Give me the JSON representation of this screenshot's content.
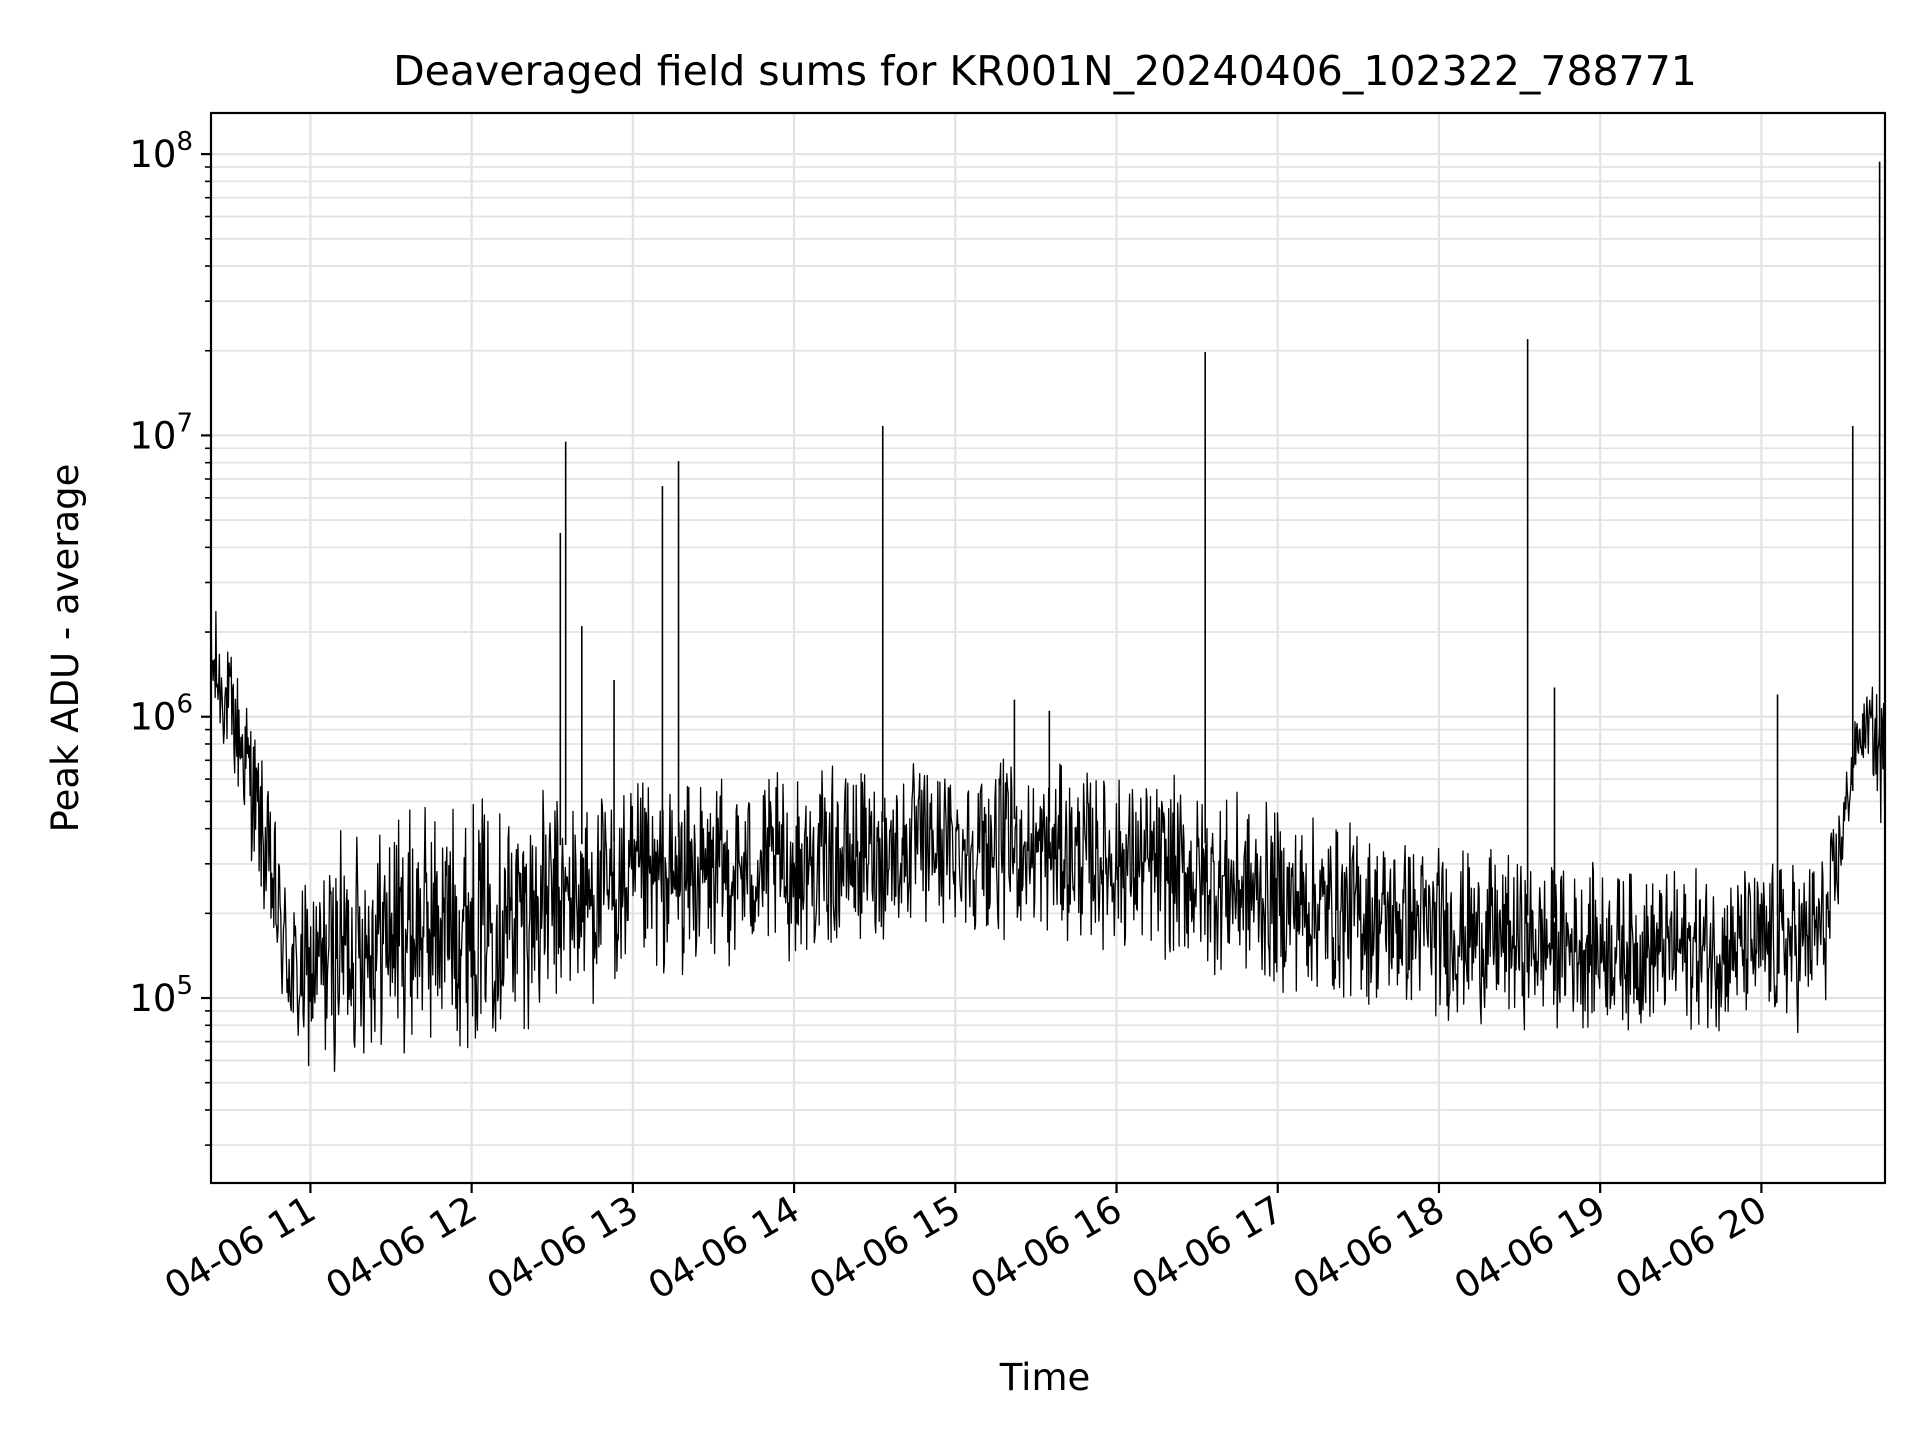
{
  "chart_data": {
    "type": "line",
    "title": "Deaveraged field sums for KR001N_20240406_102322_788771",
    "xlabel": "Time",
    "ylabel": "Peak ADU - average",
    "x_axis": {
      "kind": "datetime",
      "range": [
        "2024-04-06 10:23",
        "2024-04-06 20:46"
      ],
      "tick_labels": [
        "04-06 11",
        "04-06 12",
        "04-06 13",
        "04-06 14",
        "04-06 15",
        "04-06 16",
        "04-06 17",
        "04-06 18",
        "04-06 19",
        "04-06 20"
      ],
      "tick_times": [
        "2024-04-06 11:00",
        "2024-04-06 12:00",
        "2024-04-06 13:00",
        "2024-04-06 14:00",
        "2024-04-06 15:00",
        "2024-04-06 16:00",
        "2024-04-06 17:00",
        "2024-04-06 18:00",
        "2024-04-06 19:00",
        "2024-04-06 20:00"
      ]
    },
    "y_axis": {
      "scale": "log",
      "ylim": [
        22000,
        140000000
      ],
      "major_ticks": [
        100000,
        1000000,
        10000000,
        100000000
      ]
    },
    "grid": true,
    "color": "#000000",
    "series": [
      {
        "x": [
          "2024-04-06 10:23",
          "2024-04-06 10:28",
          "2024-04-06 10:33",
          "2024-04-06 10:38",
          "2024-04-06 10:44",
          "2024-04-06 10:50",
          "2024-04-06 10:55",
          "2024-04-06 11:05",
          "2024-04-06 11:15",
          "2024-04-06 11:30",
          "2024-04-06 11:45",
          "2024-04-06 12:00",
          "2024-04-06 12:15",
          "2024-04-06 12:30",
          "2024-04-06 12:45",
          "2024-04-06 13:00",
          "2024-04-06 13:15",
          "2024-04-06 13:30",
          "2024-04-06 13:45",
          "2024-04-06 14:00",
          "2024-04-06 14:15",
          "2024-04-06 14:30",
          "2024-04-06 14:45",
          "2024-04-06 15:00",
          "2024-04-06 15:15",
          "2024-04-06 15:30",
          "2024-04-06 15:45",
          "2024-04-06 16:00",
          "2024-04-06 16:15",
          "2024-04-06 16:30",
          "2024-04-06 16:45",
          "2024-04-06 17:00",
          "2024-04-06 17:15",
          "2024-04-06 17:30",
          "2024-04-06 17:45",
          "2024-04-06 18:00",
          "2024-04-06 18:15",
          "2024-04-06 18:30",
          "2024-04-06 18:45",
          "2024-04-06 19:00",
          "2024-04-06 19:15",
          "2024-04-06 19:30",
          "2024-04-06 19:45",
          "2024-04-06 20:00",
          "2024-04-06 20:15",
          "2024-04-06 20:25",
          "2024-04-06 20:35",
          "2024-04-06 20:40",
          "2024-04-06 20:46"
        ],
        "upper": [
          3000000,
          2000000,
          1700000,
          1200000,
          600000,
          350000,
          250000,
          350000,
          450000,
          500000,
          550000,
          570000,
          580000,
          580000,
          590000,
          610000,
          620000,
          630000,
          640000,
          650000,
          680000,
          700000,
          720000,
          740000,
          730000,
          710000,
          690000,
          670000,
          650000,
          600000,
          550000,
          500000,
          470000,
          440000,
          420000,
          380000,
          350000,
          330000,
          320000,
          310000,
          300000,
          300000,
          310000,
          320000,
          340000,
          380000,
          1000000,
          1300000,
          1400000
        ],
        "lower": [
          800000,
          700000,
          450000,
          300000,
          150000,
          70000,
          50000,
          50000,
          55000,
          60000,
          60000,
          65000,
          70000,
          80000,
          90000,
          100000,
          110000,
          120000,
          125000,
          130000,
          140000,
          150000,
          160000,
          165000,
          160000,
          155000,
          150000,
          140000,
          130000,
          120000,
          110000,
          100000,
          95000,
          90000,
          85000,
          80000,
          78000,
          76000,
          75000,
          75000,
          74000,
          74000,
          73000,
          72000,
          72000,
          90000,
          600000,
          700000,
          300000
        ],
        "spikes": [
          {
            "x": "2024-04-06 12:33",
            "y": 4500000
          },
          {
            "x": "2024-04-06 12:35",
            "y": 9500000
          },
          {
            "x": "2024-04-06 12:41",
            "y": 2100000
          },
          {
            "x": "2024-04-06 12:53",
            "y": 1350000
          },
          {
            "x": "2024-04-06 13:11",
            "y": 6600000
          },
          {
            "x": "2024-04-06 13:17",
            "y": 8100000
          },
          {
            "x": "2024-04-06 14:33",
            "y": 10800000
          },
          {
            "x": "2024-04-06 15:22",
            "y": 1150000
          },
          {
            "x": "2024-04-06 15:35",
            "y": 1050000
          },
          {
            "x": "2024-04-06 16:33",
            "y": 19800000
          },
          {
            "x": "2024-04-06 18:33",
            "y": 22000000
          },
          {
            "x": "2024-04-06 18:43",
            "y": 1270000
          },
          {
            "x": "2024-04-06 20:06",
            "y": 1200000
          },
          {
            "x": "2024-04-06 20:34",
            "y": 10800000
          },
          {
            "x": "2024-04-06 20:44",
            "y": 94000000
          }
        ]
      }
    ]
  }
}
